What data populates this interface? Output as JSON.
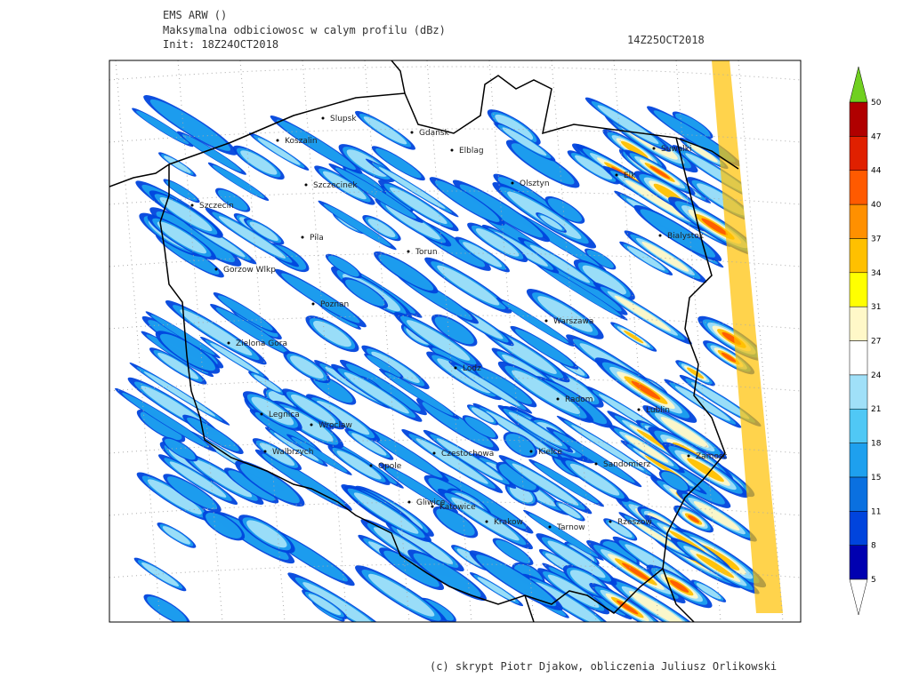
{
  "header": {
    "model": "EMS ARW ()",
    "field": "Maksymalna odbiciowosc w calym profilu (dBz)",
    "init": "Init: 18Z24OCT2018",
    "valid": "14Z25OCT2018"
  },
  "cities": [
    "Slupsk",
    "Gdansk",
    "Koszalin",
    "Elblag",
    "Suwalki",
    "Szczecinek",
    "Olsztyn",
    "Elk",
    "Szczecin",
    "Bialystok",
    "Pila",
    "Torun",
    "Gorzow Wlkp",
    "Poznan",
    "Warszawa",
    "Zielona Gora",
    "Lodz",
    "Radom",
    "Lublin",
    "Legnica",
    "Wroclaw",
    "Walbrzych",
    "Opole",
    "Czestochowa",
    "Kielce",
    "Sandomierz",
    "Zamosc",
    "Gliwice",
    "Katowice",
    "Krakow",
    "Tarnow",
    "Rzeszow"
  ],
  "colorbar": {
    "levels": [
      5,
      8,
      11,
      15,
      18,
      21,
      24,
      27,
      31,
      34,
      37,
      40,
      44,
      47,
      50
    ],
    "colors": [
      "#0000b0",
      "#0044dd",
      "#0a70e0",
      "#1ea0ee",
      "#50c8f5",
      "#a0e0f8",
      "#ffffff",
      "#fff8c8",
      "#ffff00",
      "#ffc000",
      "#ff9000",
      "#ff5a00",
      "#e02000",
      "#b00000"
    ],
    "over_color": "#70d020",
    "under_color": "#ffffff"
  },
  "footer": "(c) skrypt Piotr Djakow, obliczenia Juliusz Orlikowski"
}
